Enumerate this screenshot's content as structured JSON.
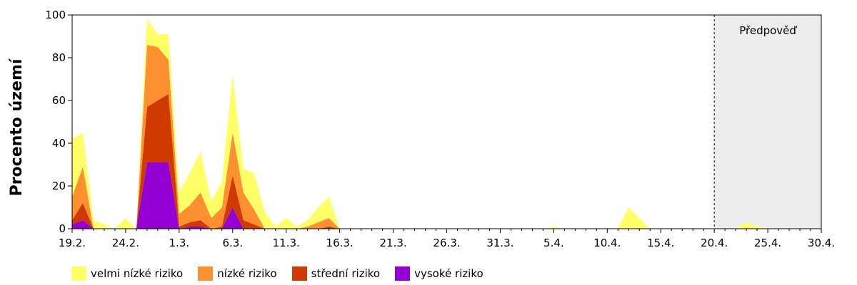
{
  "chart_data": {
    "type": "area",
    "stacked": true,
    "ylabel": "Procento území",
    "xlabel": "",
    "ylim": [
      0,
      100
    ],
    "yticks": [
      0,
      20,
      40,
      60,
      80,
      100
    ],
    "x_start": "19.2.",
    "x_end": "30.4.",
    "xtick_labels": [
      "19.2.",
      "24.2.",
      "1.3.",
      "6.3.",
      "11.3.",
      "16.3.",
      "21.3.",
      "26.3.",
      "31.3.",
      "5.4.",
      "10.4.",
      "15.4.",
      "20.4.",
      "25.4.",
      "30.4."
    ],
    "forecast": {
      "label": "Předpověď",
      "from": "20.4.",
      "to": "30.4.",
      "shade_color": "#ececec"
    },
    "grid": false,
    "legend_position": "bottom-left",
    "x": [
      "19.2.",
      "20.2.",
      "21.2.",
      "22.2.",
      "23.2.",
      "24.2.",
      "25.2.",
      "26.2.",
      "27.2.",
      "28.2.",
      "1.3.",
      "2.3.",
      "3.3.",
      "4.3.",
      "5.3.",
      "6.3.",
      "7.3.",
      "8.3.",
      "9.3.",
      "10.3.",
      "11.3.",
      "12.3.",
      "13.3.",
      "14.3.",
      "15.3.",
      "16.3.",
      "17.3.",
      "18.3.",
      "19.3.",
      "20.3.",
      "21.3.",
      "22.3.",
      "23.3.",
      "24.3.",
      "25.3.",
      "26.3.",
      "27.3.",
      "28.3.",
      "29.3.",
      "30.3.",
      "31.3.",
      "1.4.",
      "2.4.",
      "3.4.",
      "4.4.",
      "5.4.",
      "6.4.",
      "7.4.",
      "8.4.",
      "9.4.",
      "10.4.",
      "11.4.",
      "12.4.",
      "13.4.",
      "14.4.",
      "15.4.",
      "16.4.",
      "17.4.",
      "18.4.",
      "19.4.",
      "20.4.",
      "21.4.",
      "22.4.",
      "23.4.",
      "24.4.",
      "25.4.",
      "26.4.",
      "27.4.",
      "28.4.",
      "29.4.",
      "30.4."
    ],
    "series": [
      {
        "name": "vysoké riziko",
        "color": "#9400d3",
        "values": [
          2,
          4,
          0,
          0,
          0,
          0,
          0,
          31,
          31,
          31,
          0,
          1,
          1,
          0,
          0,
          10,
          0,
          0,
          0,
          0,
          0,
          0,
          0,
          0,
          0,
          0,
          0,
          0,
          0,
          0,
          0,
          0,
          0,
          0,
          0,
          0,
          0,
          0,
          0,
          0,
          0,
          0,
          0,
          0,
          0,
          0,
          0,
          0,
          0,
          0,
          0,
          0,
          0,
          0,
          0,
          0,
          0,
          0,
          0,
          0,
          0,
          0,
          0,
          0,
          0,
          0,
          0,
          0,
          0,
          0,
          0
        ]
      },
      {
        "name": "střední riziko",
        "color": "#d03a00",
        "values": [
          2,
          8,
          0,
          0,
          0,
          0,
          0,
          26,
          29,
          32,
          1,
          2,
          3,
          0,
          1,
          15,
          4,
          2,
          0,
          0,
          0,
          0,
          0,
          0,
          1,
          0,
          0,
          0,
          0,
          0,
          0,
          0,
          0,
          0,
          0,
          0,
          0,
          0,
          0,
          0,
          0,
          0,
          0,
          0,
          0,
          0,
          0,
          0,
          0,
          0,
          0,
          0,
          0,
          0,
          0,
          0,
          0,
          0,
          0,
          0,
          0,
          0,
          0,
          0,
          0,
          0,
          0,
          0,
          0,
          0,
          0
        ]
      },
      {
        "name": "nízké riziko",
        "color": "#ff9030",
        "values": [
          11,
          17,
          0,
          0,
          0,
          0,
          0,
          29,
          25,
          16,
          6,
          8,
          13,
          5,
          9,
          20,
          13,
          7,
          0,
          0,
          0,
          0,
          1,
          3,
          4,
          0,
          0,
          0,
          0,
          0,
          0,
          0,
          0,
          0,
          0,
          0,
          0,
          0,
          0,
          0,
          0,
          0,
          0,
          0,
          0,
          0,
          0,
          0,
          0,
          0,
          0,
          0,
          0,
          0,
          0,
          0,
          0,
          0,
          0,
          0,
          0,
          0,
          0,
          0,
          0,
          0,
          0,
          0,
          0,
          0,
          0
        ]
      },
      {
        "name": "velmi nízké riziko",
        "color": "#ffff66",
        "values": [
          27,
          16,
          4,
          2,
          0,
          5,
          0,
          12,
          6,
          12,
          10,
          15,
          19,
          8,
          12,
          27,
          11,
          17,
          8,
          1,
          5,
          1,
          3,
          7,
          10,
          0,
          0,
          0,
          0,
          0,
          0,
          0,
          0,
          0,
          0,
          0,
          0,
          0,
          0,
          0,
          0,
          0,
          0,
          0,
          0,
          1,
          0,
          0,
          0,
          0,
          0,
          0,
          10,
          5,
          0,
          0,
          0,
          0,
          0,
          0,
          0,
          0,
          0,
          3,
          1,
          0,
          0,
          0,
          0,
          0,
          0
        ]
      }
    ]
  }
}
